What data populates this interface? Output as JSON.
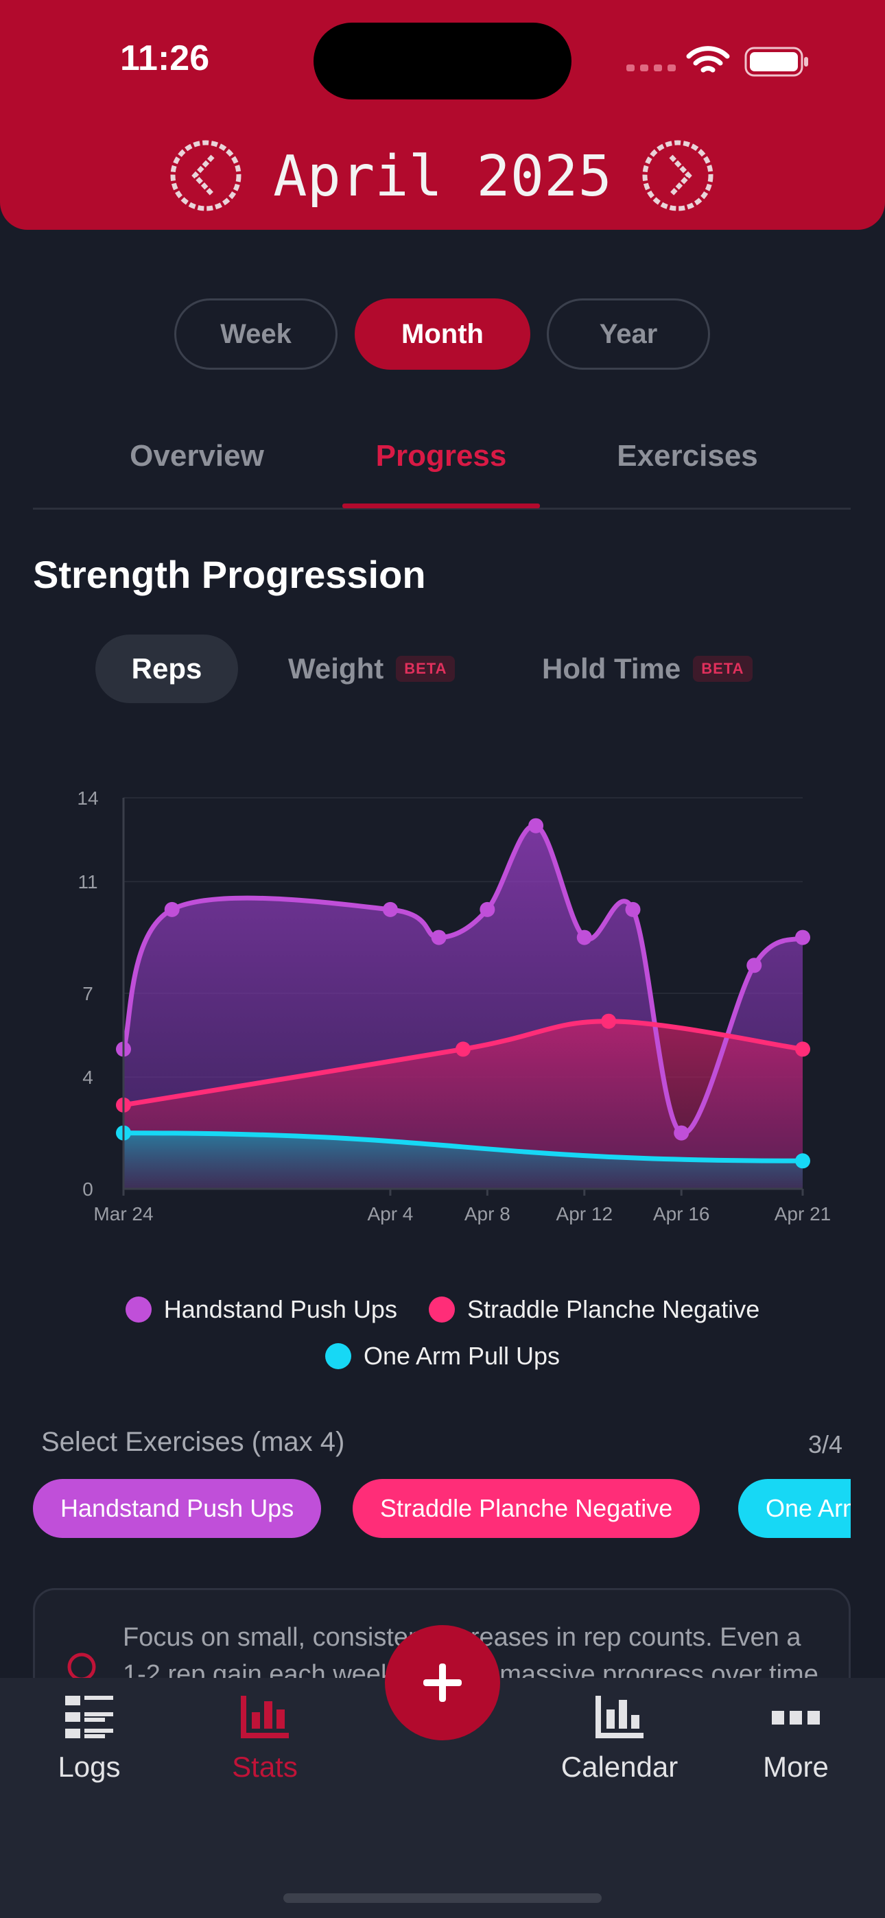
{
  "status_bar": {
    "time": "11:26"
  },
  "header": {
    "month_label": "April 2025"
  },
  "period_selector": {
    "options": [
      {
        "label": "Week",
        "active": false
      },
      {
        "label": "Month",
        "active": true
      },
      {
        "label": "Year",
        "active": false
      }
    ]
  },
  "tabs": [
    {
      "label": "Overview",
      "active": false
    },
    {
      "label": "Progress",
      "active": true
    },
    {
      "label": "Exercises",
      "active": false
    }
  ],
  "section": {
    "title": "Strength Progression"
  },
  "metric_tabs": [
    {
      "label": "Reps",
      "active": true,
      "badge": ""
    },
    {
      "label": "Weight",
      "active": false,
      "badge": "BETA"
    },
    {
      "label": "Hold Time",
      "active": false,
      "badge": "BETA"
    }
  ],
  "chart_data": {
    "type": "area",
    "title": "",
    "xlabel": "",
    "ylabel": "",
    "yticks": [
      0,
      4,
      7,
      11,
      14
    ],
    "ylim": [
      0,
      14
    ],
    "xticks": [
      "Mar 24",
      "Apr 4",
      "Apr 8",
      "Apr 12",
      "Apr 16",
      "Apr 21"
    ],
    "grid": true,
    "legend": "bottom",
    "series": [
      {
        "name": "Handstand Push Ups",
        "color": "#c04fd9",
        "points": [
          {
            "x": "Mar 24",
            "y": 5
          },
          {
            "x": "Mar 26",
            "y": 10
          },
          {
            "x": "Apr 4",
            "y": 10
          },
          {
            "x": "Apr 6",
            "y": 9
          },
          {
            "x": "Apr 8",
            "y": 10
          },
          {
            "x": "Apr 10",
            "y": 13
          },
          {
            "x": "Apr 12",
            "y": 9
          },
          {
            "x": "Apr 14",
            "y": 10
          },
          {
            "x": "Apr 16",
            "y": 2
          },
          {
            "x": "Apr 19",
            "y": 8
          },
          {
            "x": "Apr 21",
            "y": 9
          }
        ]
      },
      {
        "name": "Straddle Planche Negative",
        "color": "#ff2d78",
        "points": [
          {
            "x": "Mar 24",
            "y": 3
          },
          {
            "x": "Apr 7",
            "y": 5
          },
          {
            "x": "Apr 13",
            "y": 6
          },
          {
            "x": "Apr 21",
            "y": 5
          }
        ]
      },
      {
        "name": "One Arm Pull Ups",
        "color": "#17d8f5",
        "points": [
          {
            "x": "Mar 24",
            "y": 2
          },
          {
            "x": "Apr 21",
            "y": 1
          }
        ]
      }
    ]
  },
  "select_exercises": {
    "label": "Select Exercises (max 4)",
    "count": "3/4",
    "chips": [
      {
        "label": "Handstand Push Ups",
        "color": "#c04fd9"
      },
      {
        "label": "Straddle Planche Negative",
        "color": "#ff2d78"
      },
      {
        "label": "One Arm Pull Ups",
        "color": "#17d8f5"
      }
    ]
  },
  "tip": {
    "text": "Focus on small, consistent increases in rep counts. Even a 1-2 rep gain each week leads to massive progress over time."
  },
  "bottom_nav": [
    {
      "label": "Logs",
      "active": false
    },
    {
      "label": "Stats",
      "active": true
    },
    {
      "label": "Calendar",
      "active": false
    },
    {
      "label": "More",
      "active": false
    }
  ]
}
